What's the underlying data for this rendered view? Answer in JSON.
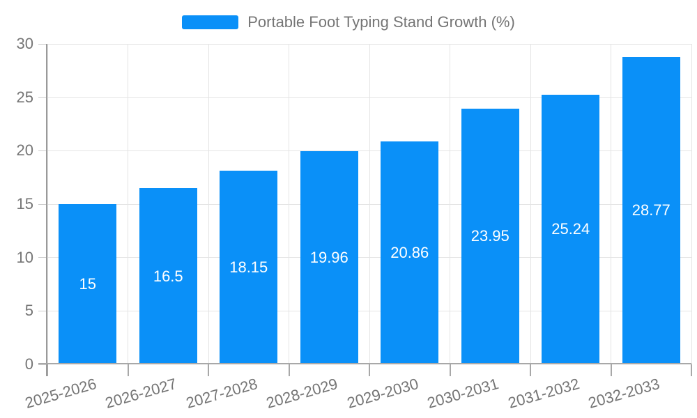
{
  "legend": {
    "label": "Portable Foot Typing Stand Growth (%)"
  },
  "colors": {
    "bar": "#0A90F8",
    "value_label": "#ffffff",
    "axis_label": "#757575",
    "legend_text": "#757575",
    "gridline": "#e4e4e4",
    "axis_line": "#9a9a9a",
    "background": "#ffffff"
  },
  "chart_data": {
    "type": "bar",
    "title": "Portable Foot Typing Stand Growth (%)",
    "categories": [
      "2025-2026",
      "2026-2027",
      "2027-2028",
      "2028-2029",
      "2029-2030",
      "2030-2031",
      "2031-2032",
      "2032-2033"
    ],
    "values": [
      15,
      16.5,
      18.15,
      19.96,
      20.86,
      23.95,
      25.24,
      28.77
    ],
    "value_labels": [
      "15",
      "16.5",
      "18.15",
      "19.96",
      "20.86",
      "23.95",
      "25.24",
      "28.77"
    ],
    "xlabel": "",
    "ylabel": "",
    "ylim": [
      0,
      30
    ],
    "yticks": [
      0,
      5,
      10,
      15,
      20,
      25,
      30
    ],
    "grid": true,
    "legend_position": "top-center",
    "x_label_rotation_deg": -16,
    "bar_color": "#0A90F8"
  }
}
